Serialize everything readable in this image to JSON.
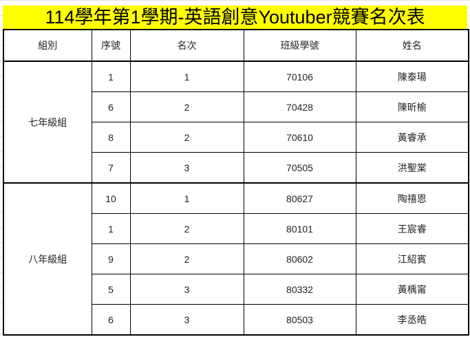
{
  "title": "114學年第1學期-英語創意Youtuber競賽名次表",
  "headers": [
    "組別",
    "序號",
    "名次",
    "班級學號",
    "姓名"
  ],
  "groups": [
    {
      "name": "七年級組",
      "rows": [
        [
          "1",
          "1",
          "70106",
          "陳泰瑒"
        ],
        [
          "6",
          "2",
          "70428",
          "陳昕榆"
        ],
        [
          "8",
          "2",
          "70610",
          "黃睿承"
        ],
        [
          "7",
          "3",
          "70505",
          "洪聖棠"
        ]
      ]
    },
    {
      "name": "八年級組",
      "rows": [
        [
          "10",
          "1",
          "80627",
          "陶禧恩"
        ],
        [
          "1",
          "2",
          "80101",
          "王宸睿"
        ],
        [
          "9",
          "2",
          "80602",
          "江紹賓"
        ],
        [
          "5",
          "3",
          "80332",
          "黃楀甯"
        ],
        [
          "6",
          "3",
          "80503",
          "李丞皓"
        ]
      ]
    }
  ]
}
